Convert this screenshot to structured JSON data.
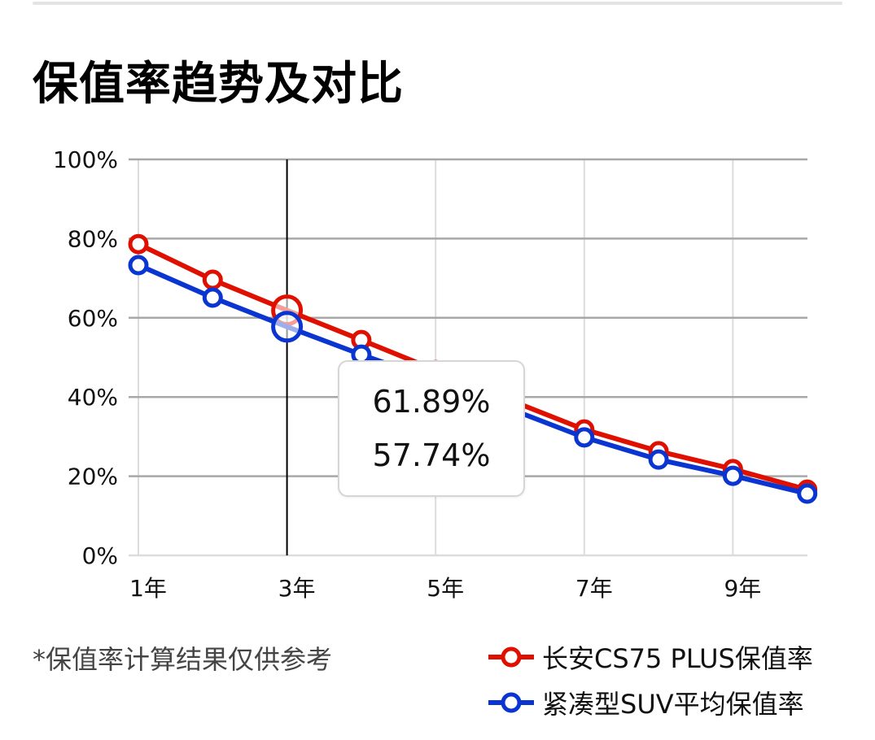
{
  "title": "保值率趋势及对比",
  "note": "*保值率计算结果仅供参考",
  "tooltip": {
    "selected_x": "3年",
    "values": [
      "61.89%",
      "57.74%"
    ]
  },
  "legend": [
    {
      "label": "长安CS75 PLUS保值率",
      "color": "#e01000"
    },
    {
      "label": "紧凑型SUV平均保值率",
      "color": "#0a35d0"
    }
  ],
  "y_ticks": [
    "0%",
    "20%",
    "40%",
    "60%",
    "80%",
    "100%"
  ],
  "x_ticks": [
    "1年",
    "3年",
    "5年",
    "7年",
    "9年"
  ],
  "chart_data": {
    "type": "line",
    "title": "保值率趋势及对比",
    "xlabel": "",
    "ylabel": "",
    "x": [
      "1年",
      "2年",
      "3年",
      "4年",
      "5年",
      "6年",
      "7年",
      "8年",
      "9年",
      "10年"
    ],
    "ylim": [
      0,
      100
    ],
    "y_unit": "%",
    "grid": true,
    "legend_position": "bottom-right",
    "series": [
      {
        "name": "长安CS75 PLUS保值率",
        "color": "#e01000",
        "values": [
          78.6,
          69.6,
          61.89,
          54.4,
          46.8,
          39.2,
          31.8,
          26.3,
          21.8,
          16.6
        ]
      },
      {
        "name": "紧凑型SUV平均保值率",
        "color": "#0a35d0",
        "values": [
          73.3,
          65.1,
          57.74,
          50.7,
          44.1,
          37.0,
          29.8,
          24.2,
          20.1,
          15.6
        ]
      }
    ],
    "highlight": {
      "x": "3年",
      "values": [
        61.89,
        57.74
      ]
    },
    "annotations": [
      "*保值率计算结果仅供参考"
    ]
  }
}
